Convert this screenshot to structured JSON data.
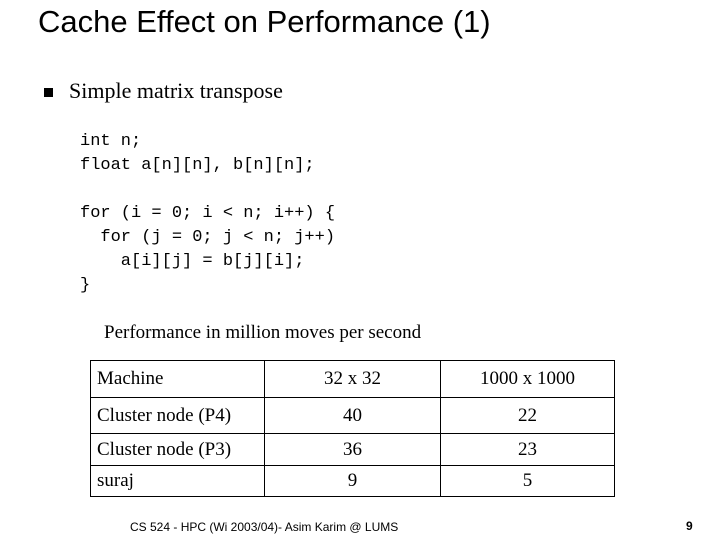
{
  "slide": {
    "title": "Cache Effect on Performance (1)",
    "bullet": "Simple matrix transpose",
    "code_decl": "int n;\nfloat a[n][n], b[n][n];",
    "code_loop": "for (i = 0; i < n; i++) {\n  for (j = 0; j < n; j++)\n    a[i][j] = b[j][i];\n}",
    "caption": "Performance in million moves per second",
    "table": {
      "headers": [
        "Machine",
        "32 x 32",
        "1000 x 1000"
      ],
      "rows": [
        [
          "Cluster node (P4)",
          "40",
          "22"
        ],
        [
          "Cluster node (P3)",
          "36",
          "23"
        ],
        [
          "suraj",
          "9",
          "5"
        ]
      ]
    },
    "footer": "CS 524 - HPC (Wi 2003/04)- Asim Karim @ LUMS",
    "page_number": "9"
  }
}
